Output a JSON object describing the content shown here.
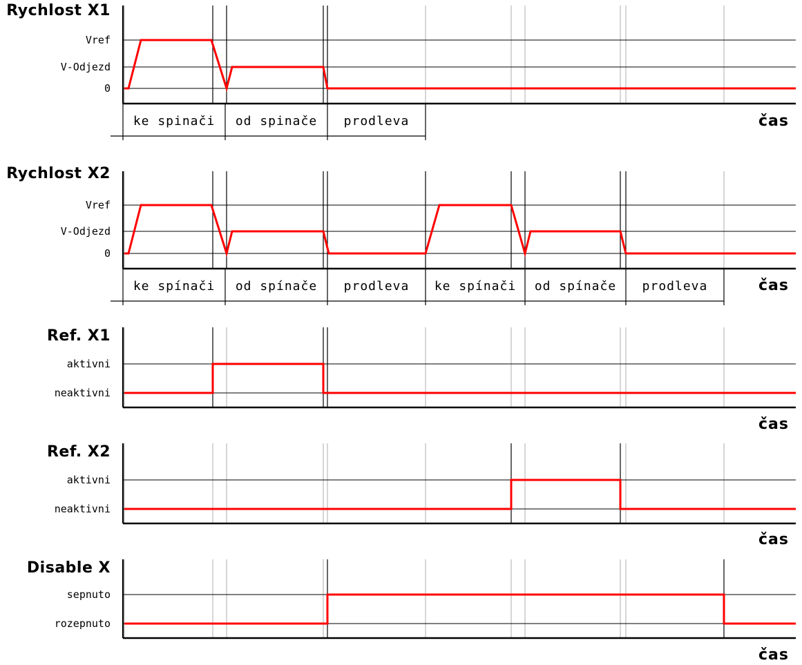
{
  "time_label": "čas",
  "colors": {
    "signal": "#ff0000",
    "axis": "#000000",
    "grid": "#bbbbbb"
  },
  "events": [
    180,
    308,
    328,
    468,
    474,
    616,
    740,
    760,
    898,
    906,
    1048
  ],
  "panels": [
    {
      "id": "rychlost-x1",
      "title": "Rychlost X1",
      "levels": [
        "Vref",
        "V-Odjezd",
        "0"
      ],
      "active_lines": [
        308,
        328,
        468,
        474
      ],
      "segments": [
        "ke spinači",
        "od spinače",
        "prodleva"
      ],
      "signal": [
        [
          180,
          "0"
        ],
        [
          186,
          "0"
        ],
        [
          204,
          "Vref"
        ],
        [
          306,
          "Vref"
        ],
        [
          328,
          "0"
        ],
        [
          336,
          "V-Odjezd"
        ],
        [
          468,
          "V-Odjezd"
        ],
        [
          474,
          "0"
        ],
        [
          1152,
          "0"
        ]
      ]
    },
    {
      "id": "rychlost-x2",
      "title": "Rychlost X2",
      "levels": [
        "Vref",
        "V-Odjezd",
        "0"
      ],
      "active_lines": [
        308,
        328,
        468,
        474,
        616,
        740,
        760,
        898,
        906
      ],
      "segments": [
        "ke spínači",
        "od spínače",
        "prodleva",
        "ke spínači",
        "od spínače",
        "prodleva"
      ],
      "signal": [
        [
          180,
          "0"
        ],
        [
          186,
          "0"
        ],
        [
          204,
          "Vref"
        ],
        [
          306,
          "Vref"
        ],
        [
          328,
          "0"
        ],
        [
          336,
          "V-Odjezd"
        ],
        [
          468,
          "V-Odjezd"
        ],
        [
          476,
          "0"
        ],
        [
          616,
          "0"
        ],
        [
          636,
          "Vref"
        ],
        [
          740,
          "Vref"
        ],
        [
          760,
          "0"
        ],
        [
          768,
          "V-Odjezd"
        ],
        [
          898,
          "V-Odjezd"
        ],
        [
          906,
          "0"
        ],
        [
          1152,
          "0"
        ]
      ]
    },
    {
      "id": "ref-x1",
      "title": "Ref. X1",
      "levels": [
        "aktivni",
        "neaktivni"
      ],
      "active_lines": [
        308,
        468,
        474
      ],
      "signal": [
        [
          180,
          "neaktivni"
        ],
        [
          308,
          "neaktivni"
        ],
        [
          308,
          "aktivni"
        ],
        [
          468,
          "aktivni"
        ],
        [
          468,
          "neaktivni"
        ],
        [
          1152,
          "neaktivni"
        ]
      ]
    },
    {
      "id": "ref-x2",
      "title": "Ref. X2",
      "levels": [
        "aktivni",
        "neaktivni"
      ],
      "active_lines": [
        740,
        898
      ],
      "signal": [
        [
          180,
          "neaktivni"
        ],
        [
          740,
          "neaktivni"
        ],
        [
          740,
          "aktivni"
        ],
        [
          898,
          "aktivni"
        ],
        [
          898,
          "neaktivni"
        ],
        [
          1152,
          "neaktivni"
        ]
      ]
    },
    {
      "id": "disable-x",
      "title": "Disable X",
      "levels": [
        "sepnuto",
        "rozepnuto"
      ],
      "active_lines": [
        474,
        1048
      ],
      "signal": [
        [
          180,
          "rozepnuto"
        ],
        [
          474,
          "rozepnuto"
        ],
        [
          474,
          "sepnuto"
        ],
        [
          1048,
          "sepnuto"
        ],
        [
          1048,
          "rozepnuto"
        ],
        [
          1152,
          "rozepnuto"
        ]
      ]
    }
  ]
}
